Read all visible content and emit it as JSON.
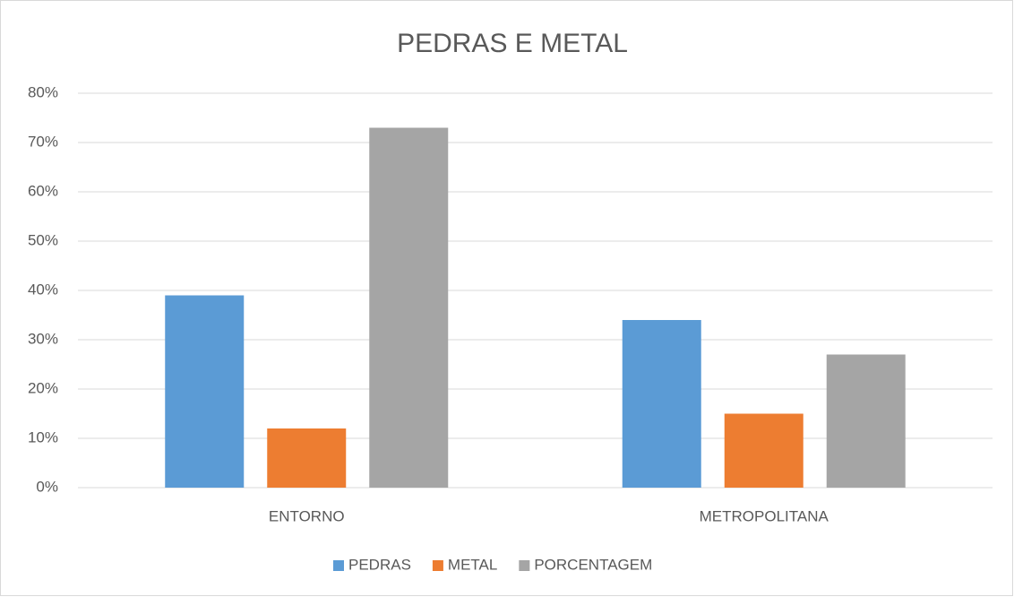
{
  "chart_data": {
    "type": "bar",
    "title": "PEDRAS E METAL",
    "categories": [
      "ENTORNO",
      "METROPOLITANA"
    ],
    "series": [
      {
        "name": "PEDRAS",
        "color": "#5b9bd5",
        "values": [
          39,
          34
        ]
      },
      {
        "name": "METAL",
        "color": "#ed7d31",
        "values": [
          12,
          15
        ]
      },
      {
        "name": "PORCENTAGEM",
        "color": "#a5a5a5",
        "values": [
          73,
          27
        ]
      }
    ],
    "ylim": [
      0,
      80
    ],
    "yticks": [
      {
        "value": 0,
        "label": "0%"
      },
      {
        "value": 10,
        "label": "10%"
      },
      {
        "value": 20,
        "label": "20%"
      },
      {
        "value": 30,
        "label": "30%"
      },
      {
        "value": 40,
        "label": "40%"
      },
      {
        "value": 50,
        "label": "50%"
      },
      {
        "value": 60,
        "label": "60%"
      },
      {
        "value": 70,
        "label": "70%"
      },
      {
        "value": 80,
        "label": "80%"
      }
    ],
    "grid": true,
    "legend": "bottom"
  }
}
